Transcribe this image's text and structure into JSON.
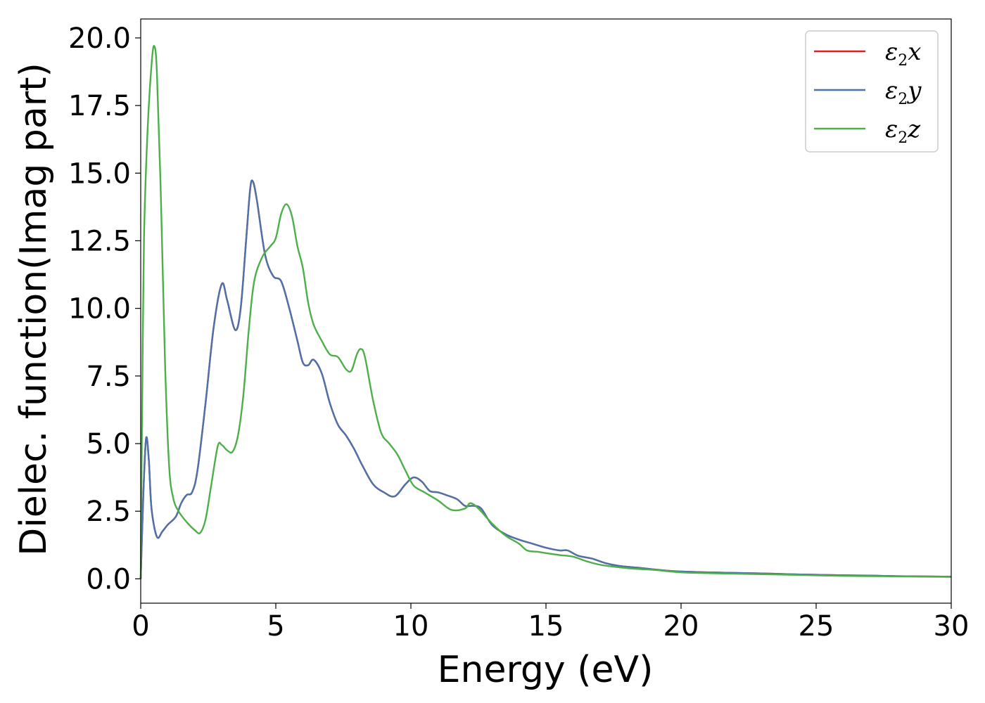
{
  "chart_data": {
    "type": "line",
    "xlabel": "Energy (eV)",
    "ylabel": "Dielec. function(Imag part)",
    "xlim": [
      0,
      30
    ],
    "ylim": [
      -0.9,
      20.7
    ],
    "xticks": [
      0,
      5,
      10,
      15,
      20,
      25,
      30
    ],
    "xtick_labels": [
      "0",
      "5",
      "10",
      "15",
      "20",
      "25",
      "30"
    ],
    "yticks": [
      0,
      2.5,
      5,
      7.5,
      10,
      12.5,
      15,
      17.5,
      20
    ],
    "ytick_labels": [
      "0.0",
      "2.5",
      "5.0",
      "7.5",
      "10.0",
      "12.5",
      "15.0",
      "17.5",
      "20.0"
    ],
    "grid": false,
    "legend_position": "top-right",
    "series": [
      {
        "name": "x",
        "color": "#e41a1c",
        "points": [
          [
            0,
            0
          ],
          [
            0.1,
            3.2
          ],
          [
            0.2,
            5.2
          ],
          [
            0.3,
            4.4
          ],
          [
            0.4,
            2.6
          ],
          [
            0.6,
            1.55
          ],
          [
            0.8,
            1.75
          ],
          [
            1.0,
            2.0
          ],
          [
            1.3,
            2.3
          ],
          [
            1.5,
            2.8
          ],
          [
            1.7,
            3.1
          ],
          [
            1.9,
            3.2
          ],
          [
            2.1,
            4.0
          ],
          [
            2.4,
            6.5
          ],
          [
            2.7,
            9.3
          ],
          [
            3.0,
            10.9
          ],
          [
            3.2,
            10.3
          ],
          [
            3.5,
            9.2
          ],
          [
            3.7,
            10.0
          ],
          [
            3.9,
            12.5
          ],
          [
            4.05,
            14.4
          ],
          [
            4.15,
            14.7
          ],
          [
            4.3,
            14.0
          ],
          [
            4.6,
            12.0
          ],
          [
            4.9,
            11.2
          ],
          [
            5.2,
            11.0
          ],
          [
            5.5,
            10.0
          ],
          [
            5.8,
            8.8
          ],
          [
            6.0,
            8.0
          ],
          [
            6.2,
            7.9
          ],
          [
            6.4,
            8.1
          ],
          [
            6.7,
            7.6
          ],
          [
            7.0,
            6.5
          ],
          [
            7.3,
            5.7
          ],
          [
            7.6,
            5.3
          ],
          [
            7.9,
            4.8
          ],
          [
            8.2,
            4.2
          ],
          [
            8.6,
            3.5
          ],
          [
            9.0,
            3.2
          ],
          [
            9.4,
            3.05
          ],
          [
            9.8,
            3.5
          ],
          [
            10.1,
            3.75
          ],
          [
            10.4,
            3.6
          ],
          [
            10.7,
            3.25
          ],
          [
            11.0,
            3.2
          ],
          [
            11.3,
            3.1
          ],
          [
            11.7,
            2.95
          ],
          [
            12.0,
            2.7
          ],
          [
            12.3,
            2.7
          ],
          [
            12.6,
            2.6
          ],
          [
            13.0,
            2.0
          ],
          [
            13.5,
            1.65
          ],
          [
            14.0,
            1.45
          ],
          [
            14.5,
            1.3
          ],
          [
            15.0,
            1.15
          ],
          [
            15.5,
            1.05
          ],
          [
            15.8,
            1.05
          ],
          [
            16.2,
            0.85
          ],
          [
            16.7,
            0.75
          ],
          [
            17.2,
            0.58
          ],
          [
            17.7,
            0.48
          ],
          [
            18.5,
            0.4
          ],
          [
            19.5,
            0.3
          ],
          [
            20.0,
            0.27
          ],
          [
            21.0,
            0.24
          ],
          [
            22.0,
            0.22
          ],
          [
            23.0,
            0.2
          ],
          [
            24.0,
            0.17
          ],
          [
            25.0,
            0.15
          ],
          [
            26.0,
            0.13
          ],
          [
            27.0,
            0.12
          ],
          [
            28.0,
            0.1
          ],
          [
            29.0,
            0.09
          ],
          [
            30.0,
            0.08
          ]
        ]
      },
      {
        "name": "y",
        "color": "#4a72ab",
        "points": [
          [
            0,
            0
          ],
          [
            0.1,
            3.2
          ],
          [
            0.2,
            5.2
          ],
          [
            0.3,
            4.4
          ],
          [
            0.4,
            2.6
          ],
          [
            0.6,
            1.55
          ],
          [
            0.8,
            1.75
          ],
          [
            1.0,
            2.0
          ],
          [
            1.3,
            2.3
          ],
          [
            1.5,
            2.8
          ],
          [
            1.7,
            3.1
          ],
          [
            1.9,
            3.2
          ],
          [
            2.1,
            4.0
          ],
          [
            2.4,
            6.5
          ],
          [
            2.7,
            9.3
          ],
          [
            3.0,
            10.9
          ],
          [
            3.2,
            10.3
          ],
          [
            3.5,
            9.2
          ],
          [
            3.7,
            10.0
          ],
          [
            3.9,
            12.5
          ],
          [
            4.05,
            14.4
          ],
          [
            4.15,
            14.7
          ],
          [
            4.3,
            14.0
          ],
          [
            4.6,
            12.0
          ],
          [
            4.9,
            11.2
          ],
          [
            5.2,
            11.0
          ],
          [
            5.5,
            10.0
          ],
          [
            5.8,
            8.8
          ],
          [
            6.0,
            8.0
          ],
          [
            6.2,
            7.9
          ],
          [
            6.4,
            8.1
          ],
          [
            6.7,
            7.6
          ],
          [
            7.0,
            6.5
          ],
          [
            7.3,
            5.7
          ],
          [
            7.6,
            5.3
          ],
          [
            7.9,
            4.8
          ],
          [
            8.2,
            4.2
          ],
          [
            8.6,
            3.5
          ],
          [
            9.0,
            3.2
          ],
          [
            9.4,
            3.05
          ],
          [
            9.8,
            3.5
          ],
          [
            10.1,
            3.75
          ],
          [
            10.4,
            3.6
          ],
          [
            10.7,
            3.25
          ],
          [
            11.0,
            3.2
          ],
          [
            11.3,
            3.1
          ],
          [
            11.7,
            2.95
          ],
          [
            12.0,
            2.7
          ],
          [
            12.3,
            2.7
          ],
          [
            12.6,
            2.6
          ],
          [
            13.0,
            2.0
          ],
          [
            13.5,
            1.65
          ],
          [
            14.0,
            1.45
          ],
          [
            14.5,
            1.3
          ],
          [
            15.0,
            1.15
          ],
          [
            15.5,
            1.05
          ],
          [
            15.8,
            1.05
          ],
          [
            16.2,
            0.85
          ],
          [
            16.7,
            0.75
          ],
          [
            17.2,
            0.58
          ],
          [
            17.7,
            0.48
          ],
          [
            18.5,
            0.4
          ],
          [
            19.5,
            0.3
          ],
          [
            20.0,
            0.27
          ],
          [
            21.0,
            0.24
          ],
          [
            22.0,
            0.22
          ],
          [
            23.0,
            0.2
          ],
          [
            24.0,
            0.17
          ],
          [
            25.0,
            0.15
          ],
          [
            26.0,
            0.13
          ],
          [
            27.0,
            0.12
          ],
          [
            28.0,
            0.1
          ],
          [
            29.0,
            0.09
          ],
          [
            30.0,
            0.08
          ]
        ]
      },
      {
        "name": "z",
        "color": "#4daf4a",
        "points": [
          [
            0,
            0
          ],
          [
            0.05,
            6.0
          ],
          [
            0.12,
            12.5
          ],
          [
            0.25,
            16.5
          ],
          [
            0.4,
            19.0
          ],
          [
            0.5,
            19.7
          ],
          [
            0.6,
            18.7
          ],
          [
            0.75,
            14.0
          ],
          [
            0.9,
            8.0
          ],
          [
            1.05,
            4.2
          ],
          [
            1.2,
            3.0
          ],
          [
            1.4,
            2.5
          ],
          [
            1.7,
            2.1
          ],
          [
            2.0,
            1.8
          ],
          [
            2.2,
            1.7
          ],
          [
            2.4,
            2.2
          ],
          [
            2.6,
            3.4
          ],
          [
            2.85,
            4.9
          ],
          [
            3.0,
            4.95
          ],
          [
            3.2,
            4.75
          ],
          [
            3.4,
            4.7
          ],
          [
            3.6,
            5.3
          ],
          [
            3.8,
            6.8
          ],
          [
            4.0,
            9.2
          ],
          [
            4.2,
            11.0
          ],
          [
            4.5,
            11.9
          ],
          [
            4.8,
            12.3
          ],
          [
            5.0,
            12.6
          ],
          [
            5.2,
            13.5
          ],
          [
            5.4,
            13.85
          ],
          [
            5.6,
            13.4
          ],
          [
            5.8,
            12.3
          ],
          [
            6.0,
            11.5
          ],
          [
            6.2,
            10.2
          ],
          [
            6.4,
            9.4
          ],
          [
            6.7,
            8.8
          ],
          [
            7.0,
            8.3
          ],
          [
            7.3,
            8.2
          ],
          [
            7.6,
            7.75
          ],
          [
            7.8,
            7.7
          ],
          [
            8.0,
            8.3
          ],
          [
            8.15,
            8.5
          ],
          [
            8.3,
            8.2
          ],
          [
            8.6,
            6.6
          ],
          [
            8.9,
            5.4
          ],
          [
            9.2,
            5.0
          ],
          [
            9.5,
            4.6
          ],
          [
            9.8,
            4.0
          ],
          [
            10.1,
            3.45
          ],
          [
            10.5,
            3.2
          ],
          [
            11.0,
            2.9
          ],
          [
            11.5,
            2.55
          ],
          [
            12.0,
            2.6
          ],
          [
            12.2,
            2.8
          ],
          [
            12.5,
            2.6
          ],
          [
            13.0,
            2.05
          ],
          [
            13.5,
            1.6
          ],
          [
            14.0,
            1.3
          ],
          [
            14.3,
            1.05
          ],
          [
            14.7,
            1.0
          ],
          [
            15.0,
            0.95
          ],
          [
            15.5,
            0.88
          ],
          [
            16.0,
            0.82
          ],
          [
            16.5,
            0.65
          ],
          [
            17.0,
            0.52
          ],
          [
            17.5,
            0.45
          ],
          [
            18.2,
            0.38
          ],
          [
            19.0,
            0.33
          ],
          [
            20.0,
            0.24
          ],
          [
            21.0,
            0.21
          ],
          [
            22.0,
            0.19
          ],
          [
            23.0,
            0.17
          ],
          [
            24.0,
            0.15
          ],
          [
            25.0,
            0.13
          ],
          [
            26.0,
            0.11
          ],
          [
            27.0,
            0.1
          ],
          [
            28.0,
            0.09
          ],
          [
            29.0,
            0.08
          ],
          [
            30.0,
            0.07
          ]
        ]
      }
    ]
  }
}
